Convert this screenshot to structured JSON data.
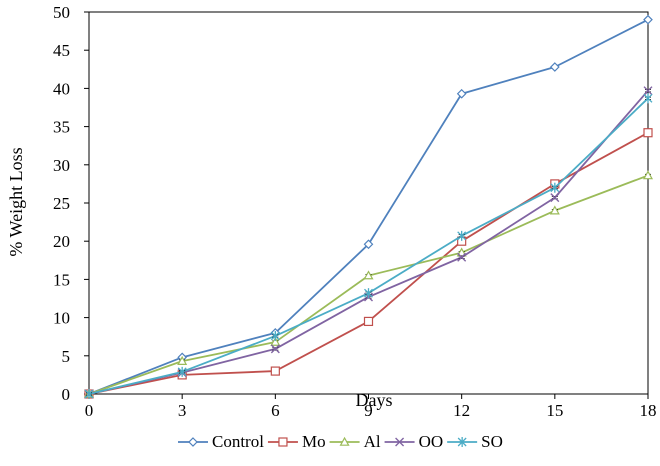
{
  "chart_data": {
    "type": "line",
    "title": "",
    "xlabel": "Days",
    "ylabel": "% Weight Loss",
    "x": [
      0,
      3,
      6,
      9,
      12,
      15,
      18
    ],
    "xlim": [
      0,
      18
    ],
    "ylim": [
      0,
      50
    ],
    "xticks": [
      0,
      3,
      6,
      9,
      12,
      15,
      18
    ],
    "yticks": [
      0,
      5,
      10,
      15,
      20,
      25,
      30,
      35,
      40,
      45,
      50
    ],
    "grid": false,
    "legend_position": "bottom",
    "series": [
      {
        "name": "Control",
        "color": "#4f81bd",
        "marker": "diamond",
        "values": [
          0,
          4.8,
          8.0,
          19.6,
          39.3,
          42.8,
          49.0
        ]
      },
      {
        "name": "Mo",
        "color": "#c0504d",
        "marker": "square",
        "values": [
          0,
          2.5,
          3.0,
          9.5,
          20.0,
          27.5,
          34.2
        ]
      },
      {
        "name": "Al",
        "color": "#9bbb59",
        "marker": "triangle",
        "values": [
          0,
          4.3,
          6.8,
          15.5,
          18.5,
          24.0,
          28.6
        ]
      },
      {
        "name": "OO",
        "color": "#8064a2",
        "marker": "x",
        "values": [
          0,
          2.8,
          5.9,
          12.7,
          17.9,
          25.7,
          39.7
        ]
      },
      {
        "name": "SO",
        "color": "#4bacc6",
        "marker": "asterisk",
        "values": [
          0,
          2.9,
          7.6,
          13.2,
          20.7,
          27.0,
          38.7
        ]
      }
    ]
  }
}
